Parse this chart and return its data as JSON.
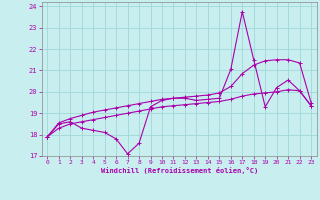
{
  "xlabel": "Windchill (Refroidissement éolien,°C)",
  "background_color": "#c8eef0",
  "grid_color": "#a0d8d8",
  "line_color": "#aa00aa",
  "xlim": [
    -0.5,
    23.5
  ],
  "ylim": [
    17,
    24.2
  ],
  "yticks": [
    17,
    18,
    19,
    20,
    21,
    22,
    23,
    24
  ],
  "xticks": [
    0,
    1,
    2,
    3,
    4,
    5,
    6,
    7,
    8,
    9,
    10,
    11,
    12,
    13,
    14,
    15,
    16,
    17,
    18,
    19,
    20,
    21,
    22,
    23
  ],
  "line1_x": [
    0,
    1,
    2,
    3,
    4,
    5,
    6,
    7,
    8,
    9,
    10,
    11,
    12,
    13,
    14,
    15,
    16,
    17,
    18,
    19,
    20,
    21,
    22,
    23
  ],
  "line1_y": [
    17.9,
    18.5,
    18.6,
    18.3,
    18.2,
    18.1,
    17.8,
    17.1,
    17.6,
    19.3,
    19.6,
    19.7,
    19.7,
    19.6,
    19.65,
    19.7,
    21.05,
    23.75,
    21.5,
    19.3,
    20.2,
    20.55,
    20.05,
    19.35
  ],
  "line2_x": [
    0,
    1,
    2,
    3,
    4,
    5,
    6,
    7,
    8,
    9,
    10,
    11,
    12,
    13,
    14,
    15,
    16,
    17,
    18,
    19,
    20,
    21,
    22,
    23
  ],
  "line2_y": [
    17.9,
    18.55,
    18.75,
    18.9,
    19.05,
    19.15,
    19.25,
    19.35,
    19.45,
    19.55,
    19.65,
    19.7,
    19.75,
    19.8,
    19.85,
    19.95,
    20.25,
    20.85,
    21.25,
    21.45,
    21.5,
    21.5,
    21.35,
    19.5
  ],
  "line3_x": [
    0,
    1,
    2,
    3,
    4,
    5,
    6,
    7,
    8,
    9,
    10,
    11,
    12,
    13,
    14,
    15,
    16,
    17,
    18,
    19,
    20,
    21,
    22,
    23
  ],
  "line3_y": [
    17.9,
    18.3,
    18.5,
    18.6,
    18.7,
    18.8,
    18.9,
    19.0,
    19.1,
    19.2,
    19.3,
    19.35,
    19.4,
    19.45,
    19.5,
    19.55,
    19.65,
    19.8,
    19.9,
    19.95,
    20.0,
    20.1,
    20.05,
    19.35
  ]
}
